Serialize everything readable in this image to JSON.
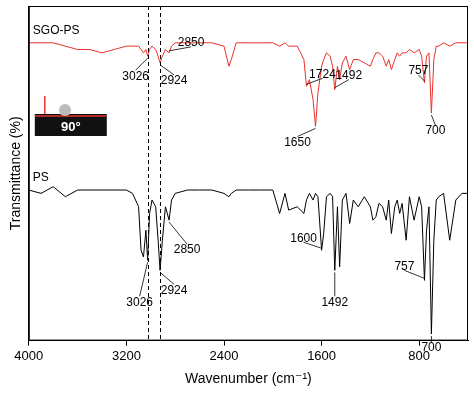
{
  "chart_data": {
    "type": "line",
    "x_label": "Wavenumber (cm⁻¹)",
    "y_label": "Transmittance (%)",
    "xlim": [
      4000,
      400
    ],
    "xticks": [
      4000,
      3200,
      2400,
      1600,
      800
    ],
    "ylim": [
      0,
      100
    ],
    "tick_labels": "x",
    "grid": false,
    "vlines": [
      3026,
      2924
    ],
    "inset_label": "90°",
    "x": [
      4000,
      3900,
      3800,
      3700,
      3600,
      3500,
      3400,
      3300,
      3200,
      3150,
      3100,
      3080,
      3060,
      3040,
      3026,
      3010,
      2990,
      2960,
      2940,
      2924,
      2905,
      2880,
      2850,
      2830,
      2800,
      2700,
      2600,
      2500,
      2400,
      2360,
      2340,
      2300,
      2200,
      2100,
      2000,
      1944,
      1900,
      1870,
      1800,
      1745,
      1724,
      1700,
      1670,
      1650,
      1630,
      1600,
      1583,
      1560,
      1530,
      1510,
      1492,
      1470,
      1452,
      1430,
      1400,
      1370,
      1340,
      1300,
      1250,
      1200,
      1180,
      1155,
      1130,
      1100,
      1070,
      1050,
      1028,
      1000,
      980,
      960,
      940,
      907,
      880,
      842,
      800,
      780,
      757,
      740,
      720,
      700,
      680,
      660,
      640,
      600,
      550,
      500,
      450,
      400
    ],
    "series": [
      {
        "name": "SGO-PS",
        "color": "#e8322a",
        "values": [
          89,
          89,
          89,
          88,
          87,
          87,
          86,
          87,
          88,
          88,
          88,
          87,
          86,
          87,
          85,
          87,
          88,
          87,
          85,
          83,
          85,
          87,
          86,
          88,
          89,
          89,
          89,
          89,
          88,
          82,
          84,
          89,
          89,
          89,
          89,
          88,
          89,
          88,
          88,
          84,
          76,
          78,
          72,
          64,
          74,
          82,
          84,
          86,
          85,
          82,
          75,
          82,
          78,
          83,
          85,
          81,
          84,
          84,
          83,
          82,
          84,
          86,
          86,
          85,
          82,
          84,
          81,
          84,
          86,
          85,
          86,
          86,
          87,
          86,
          87,
          85,
          77,
          85,
          86,
          68,
          84,
          88,
          88,
          89,
          88,
          89,
          89,
          89
        ],
        "peaks": [
          3026,
          2924,
          2850,
          1724,
          1650,
          1492,
          757,
          700
        ]
      },
      {
        "name": "PS",
        "color": "#000000",
        "values": [
          45,
          44,
          46,
          43,
          45,
          45,
          45,
          45,
          45,
          44,
          40,
          27,
          25,
          33,
          24,
          38,
          42,
          40,
          30,
          21,
          30,
          40,
          36,
          42,
          44,
          45,
          45,
          45,
          44,
          43,
          44,
          45,
          45,
          45,
          45,
          38,
          44,
          39,
          40,
          38,
          42,
          44,
          42,
          44,
          43,
          27,
          32,
          43,
          44,
          43,
          21,
          40,
          22,
          42,
          44,
          35,
          42,
          40,
          43,
          40,
          36,
          37,
          41,
          40,
          36,
          42,
          32,
          40,
          42,
          38,
          41,
          30,
          43,
          36,
          43,
          40,
          18,
          33,
          40,
          2,
          30,
          42,
          43,
          44,
          30,
          42,
          44,
          44
        ],
        "peaks": [
          3026,
          2924,
          2850,
          1600,
          1492,
          757,
          700
        ]
      }
    ]
  }
}
